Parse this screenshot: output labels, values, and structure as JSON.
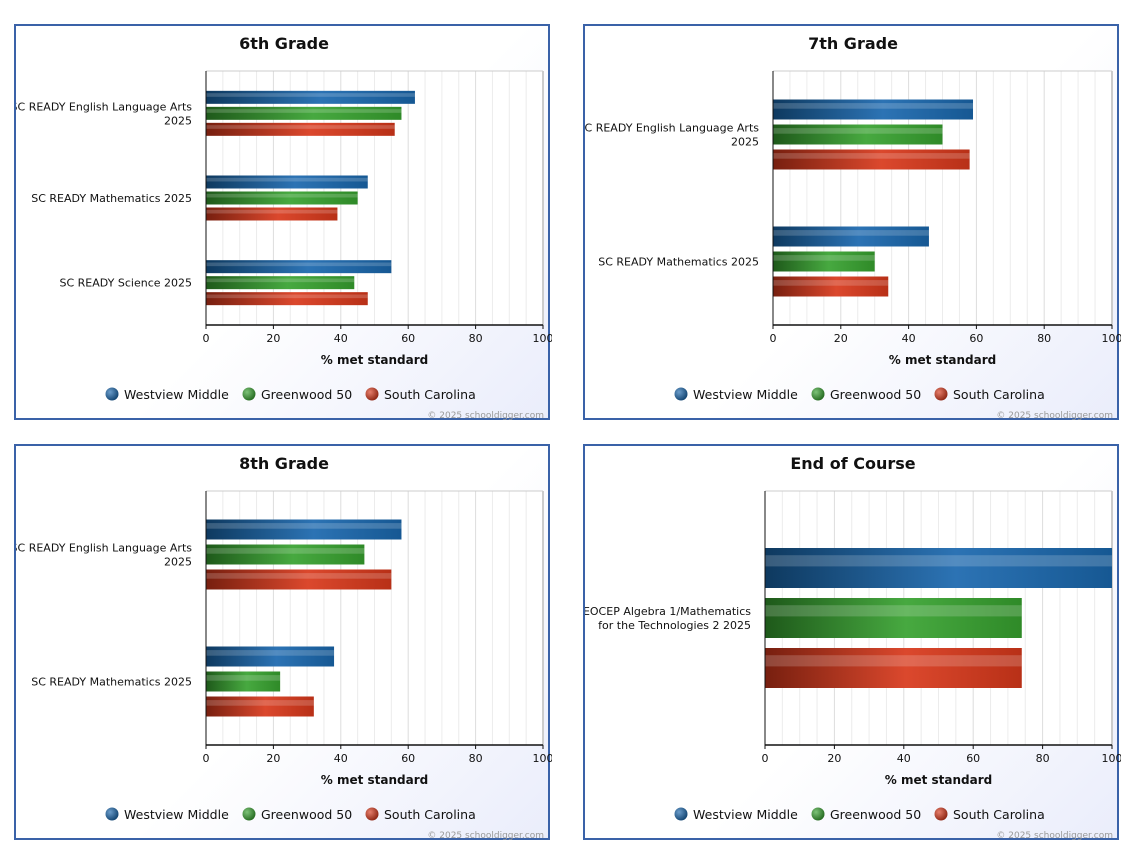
{
  "legend": [
    "Westview Middle",
    "Greenwood 50",
    "South Carolina"
  ],
  "colors": {
    "Westview Middle": "#1a67ad",
    "Greenwood 50": "#37a22f",
    "South Carolina": "#d8381b"
  },
  "credit": "© 2025 schooldigger.com",
  "chart_data": [
    {
      "type": "bar",
      "title": "6th Grade",
      "categories": [
        [
          "SC READY English Language Arts",
          "2025"
        ],
        [
          "SC READY Mathematics 2025"
        ],
        [
          "SC READY Science 2025"
        ]
      ],
      "series": [
        {
          "name": "Westview Middle",
          "values": [
            62,
            48,
            55
          ]
        },
        {
          "name": "Greenwood 50",
          "values": [
            58,
            45,
            44
          ]
        },
        {
          "name": "South Carolina",
          "values": [
            56,
            39,
            48
          ]
        }
      ],
      "xlabel": "% met standard",
      "xlim": [
        0,
        100
      ],
      "ticks": [
        "0",
        "20",
        "40",
        "60",
        "80",
        "100"
      ]
    },
    {
      "type": "bar",
      "title": "7th Grade",
      "categories": [
        [
          "SC READY English Language Arts",
          "2025"
        ],
        [
          "SC READY Mathematics 2025"
        ]
      ],
      "series": [
        {
          "name": "Westview Middle",
          "values": [
            59,
            46
          ]
        },
        {
          "name": "Greenwood 50",
          "values": [
            50,
            30
          ]
        },
        {
          "name": "South Carolina",
          "values": [
            58,
            34
          ]
        }
      ],
      "xlabel": "% met standard",
      "xlim": [
        0,
        100
      ],
      "ticks": [
        "0",
        "20",
        "40",
        "60",
        "80",
        "100"
      ]
    },
    {
      "type": "bar",
      "title": "8th Grade",
      "categories": [
        [
          "SC READY English Language Arts",
          "2025"
        ],
        [
          "SC READY Mathematics 2025"
        ]
      ],
      "series": [
        {
          "name": "Westview Middle",
          "values": [
            58,
            38
          ]
        },
        {
          "name": "Greenwood 50",
          "values": [
            47,
            22
          ]
        },
        {
          "name": "South Carolina",
          "values": [
            55,
            32
          ]
        }
      ],
      "xlabel": "% met standard",
      "xlim": [
        0,
        100
      ],
      "ticks": [
        "0",
        "20",
        "40",
        "60",
        "80",
        "100"
      ]
    },
    {
      "type": "bar",
      "title": "End of Course",
      "categories": [
        [
          "EOCEP Algebra 1/Mathematics",
          "for the Technologies 2 2025"
        ]
      ],
      "series": [
        {
          "name": "Westview Middle",
          "values": [
            100
          ]
        },
        {
          "name": "Greenwood 50",
          "values": [
            74
          ]
        },
        {
          "name": "South Carolina",
          "values": [
            74
          ]
        }
      ],
      "xlabel": "% met standard",
      "xlim": [
        0,
        100
      ],
      "ticks": [
        "0",
        "20",
        "40",
        "60",
        "80",
        "100"
      ]
    }
  ]
}
